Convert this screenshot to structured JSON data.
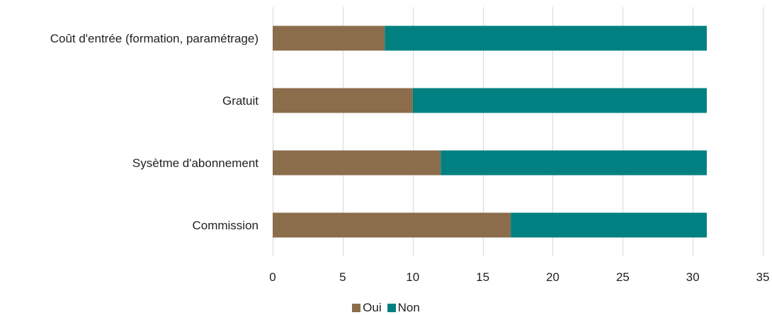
{
  "chart_data": {
    "type": "bar",
    "orientation": "horizontal",
    "stacked": true,
    "categories": [
      "Coût d'entrée (formation, paramétrage)",
      "Gratuit",
      "Sysètme d'abonnement",
      "Commission"
    ],
    "series": [
      {
        "name": "Oui",
        "color": "#8b6d4c",
        "values": [
          8,
          10,
          12,
          17
        ]
      },
      {
        "name": "Non",
        "color": "#008080",
        "values": [
          23,
          21,
          19,
          14
        ]
      }
    ],
    "xlim": [
      0,
      35
    ],
    "xticks": [
      0,
      5,
      10,
      15,
      20,
      25,
      30,
      35
    ],
    "grid": "vertical",
    "legend_position": "bottom-center",
    "gridline_color": "#d9d9d9",
    "title": "",
    "xlabel": "",
    "ylabel": ""
  }
}
